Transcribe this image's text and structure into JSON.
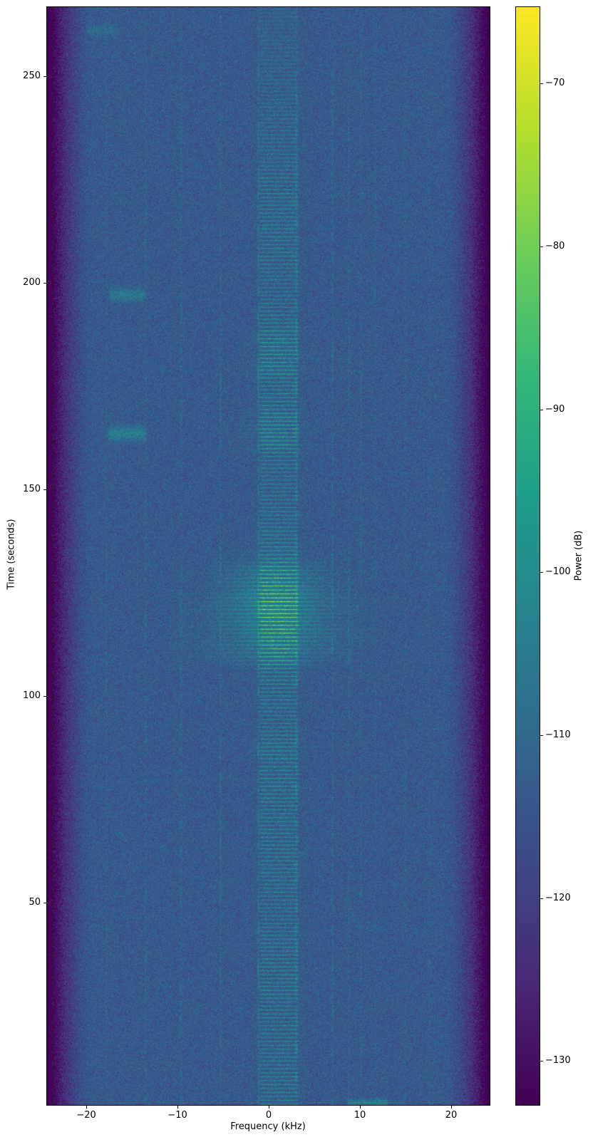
{
  "figure": {
    "background": "#ffffff",
    "spine_color": "#000000",
    "text_color": "#000000"
  },
  "chart_data": {
    "type": "heatmap",
    "subtype": "spectrogram",
    "xlabel": "Frequency (kHz)",
    "ylabel": "Time (seconds)",
    "colorbar_label": "Power (dB)",
    "xlim": [
      -24.3,
      24.22
    ],
    "ylim": [
      1.0,
      266.7
    ],
    "clim": [
      -132.7,
      -65.3
    ],
    "grid": false,
    "colormap": "viridis",
    "colormap_stops": [
      "#440154",
      "#482878",
      "#3e4989",
      "#31688e",
      "#26828e",
      "#1f9e89",
      "#35b779",
      "#6ece58",
      "#b5de2b",
      "#fde725"
    ],
    "xticks": [
      {
        "value": -20,
        "label": "−20"
      },
      {
        "value": -10,
        "label": "−10"
      },
      {
        "value": 0,
        "label": "0"
      },
      {
        "value": 10,
        "label": "10"
      },
      {
        "value": 20,
        "label": "20"
      }
    ],
    "yticks": [
      {
        "value": 50,
        "label": "50"
      },
      {
        "value": 100,
        "label": "100"
      },
      {
        "value": 150,
        "label": "150"
      },
      {
        "value": 200,
        "label": "200"
      },
      {
        "value": 250,
        "label": "250"
      }
    ],
    "colorbar_ticks": [
      {
        "value": -70,
        "label": "−70"
      },
      {
        "value": -80,
        "label": "−80"
      },
      {
        "value": -90,
        "label": "−90"
      },
      {
        "value": -100,
        "label": "−100"
      },
      {
        "value": -110,
        "label": "−110"
      },
      {
        "value": -120,
        "label": "−120"
      },
      {
        "value": -130,
        "label": "−130"
      }
    ],
    "background_level_db": -113.5,
    "noise_sigma_db": 3.3,
    "edge_falloff": {
      "start_khz": 19.2,
      "power": 1.7,
      "drop_db": 23
    },
    "center_band": {
      "freq_range": [
        -1.25,
        3.45
      ],
      "edge_soft_khz": 0.45,
      "stripe_period_s": 0.95,
      "base_lift_db": 3,
      "stripe_amp_db": 16,
      "time_envelope": [
        [
          0,
          0.75
        ],
        [
          18,
          0.68
        ],
        [
          33,
          0.8
        ],
        [
          48,
          0.62
        ],
        [
          62,
          0.72
        ],
        [
          80,
          0.85
        ],
        [
          93,
          0.6
        ],
        [
          105,
          0.85
        ],
        [
          118,
          0.95
        ],
        [
          124,
          1.0
        ],
        [
          132,
          0.85
        ],
        [
          142,
          0.68
        ],
        [
          152,
          0.55
        ],
        [
          162,
          0.85
        ],
        [
          170,
          0.78
        ],
        [
          184,
          0.88
        ],
        [
          192,
          0.7
        ],
        [
          200,
          0.55
        ],
        [
          210,
          0.75
        ],
        [
          222,
          0.68
        ],
        [
          232,
          0.5
        ],
        [
          244,
          0.42
        ],
        [
          254,
          0.3
        ],
        [
          266,
          0.25
        ]
      ]
    },
    "hot_spot": {
      "time_s": 122,
      "freq_khz": 0.8,
      "sigma_t_s": 10,
      "sigma_f_khz": 4.5,
      "amp_db": 11
    },
    "wide_bursts": [
      {
        "time_range": [
          106,
          133
        ],
        "freq_sigma_khz": 5.5,
        "amp_db": 7
      },
      {
        "time_range": [
          108,
          126
        ],
        "freq_sigma_khz": 9.0,
        "amp_db": 3
      },
      {
        "time_range": [
          158,
          170
        ],
        "freq_sigma_khz": 3.2,
        "amp_db": 5
      },
      {
        "time_range": [
          176,
          190
        ],
        "freq_sigma_khz": 2.8,
        "amp_db": 4
      },
      {
        "time_range": [
          84,
          92
        ],
        "freq_sigma_khz": 2.5,
        "amp_db": 3
      }
    ],
    "vertical_lines": [
      {
        "freq_khz": -17.8,
        "amp_db": 2.5
      },
      {
        "freq_khz": -13.5,
        "amp_db": 3.5
      },
      {
        "freq_khz": -9.6,
        "amp_db": 3.5
      },
      {
        "freq_khz": -5.3,
        "amp_db": 4.0
      },
      {
        "freq_khz": -1.15,
        "amp_db": 6.5
      },
      {
        "freq_khz": 3.05,
        "amp_db": 6.5
      },
      {
        "freq_khz": 7.0,
        "amp_db": 4.5
      },
      {
        "freq_khz": 8.8,
        "amp_db": 3.0
      },
      {
        "freq_khz": 10.1,
        "amp_db": 3.0
      },
      {
        "freq_khz": 11.7,
        "amp_db": 2.0
      },
      {
        "freq_khz": 15.0,
        "amp_db": 2.0
      },
      {
        "freq_khz": 17.6,
        "amp_db": 1.8
      }
    ],
    "events": [
      {
        "time_s": 197,
        "freq_range": [
          -17.6,
          -13.4
        ],
        "amp_db": 10,
        "sigma_t_s": 1.4
      },
      {
        "time_s": 163.5,
        "freq_range": [
          -17.8,
          -13.3
        ],
        "amp_db": 11,
        "sigma_t_s": 1.7
      },
      {
        "time_s": 261,
        "freq_range": [
          -20.1,
          -16.3
        ],
        "amp_db": 5.5,
        "sigma_t_s": 1.1
      },
      {
        "time_s": 1.5,
        "freq_range": [
          8.4,
          13.2
        ],
        "amp_db": 11,
        "sigma_t_s": 0.9
      }
    ]
  }
}
